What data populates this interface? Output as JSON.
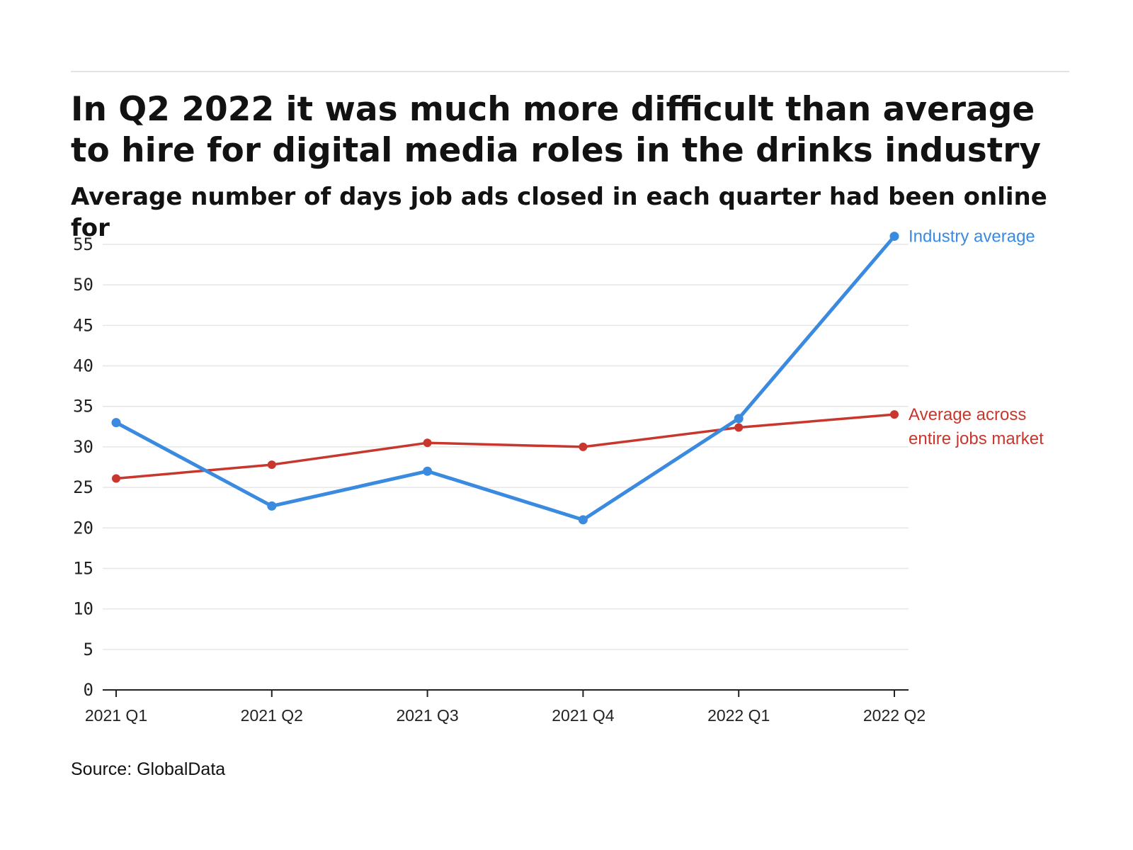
{
  "header": {
    "title": "In Q2 2022 it was much more difficult than average to hire for digital media roles in the drinks industry",
    "subtitle": "Average number of days job ads closed in each quarter had been online for"
  },
  "footer": {
    "source": "Source: GlobalData"
  },
  "colors": {
    "industry": "#3a8ae0",
    "market": "#c8372d",
    "grid": "#e6e6e6",
    "axis": "#222222"
  },
  "chart_data": {
    "type": "line",
    "title": "In Q2 2022 it was much more difficult than average to hire for digital media roles in the drinks industry",
    "subtitle": "Average number of days job ads closed in each quarter had been online for",
    "xlabel": "",
    "ylabel": "",
    "categories": [
      "2021 Q1",
      "2021 Q2",
      "2021 Q3",
      "2021 Q4",
      "2022 Q1",
      "2022 Q2"
    ],
    "ylim": [
      0,
      55
    ],
    "yticks": [
      0,
      5,
      10,
      15,
      20,
      25,
      30,
      35,
      40,
      45,
      50,
      55
    ],
    "grid": true,
    "legend": "direct labels at line ends (right)",
    "series": [
      {
        "name": "Industry average",
        "label_lines": [
          "Industry average"
        ],
        "color": "#3a8ae0",
        "values": [
          33.0,
          22.7,
          27.0,
          21.0,
          33.5,
          56.0
        ]
      },
      {
        "name": "Average across entire jobs market",
        "label_lines": [
          "Average across",
          "entire jobs market"
        ],
        "color": "#c8372d",
        "values": [
          26.1,
          27.8,
          30.5,
          30.0,
          32.4,
          34.0
        ]
      }
    ]
  }
}
